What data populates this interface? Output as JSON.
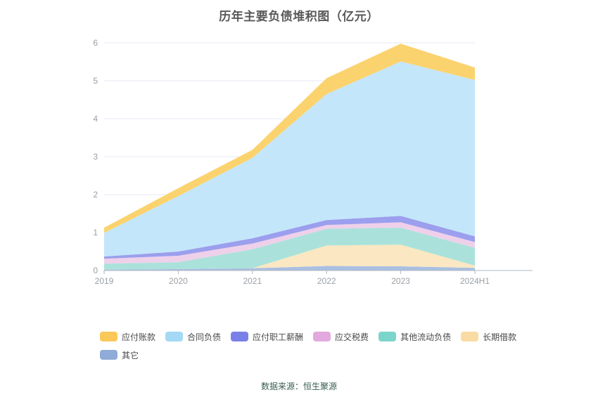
{
  "title": "历年主要负债堆积图（亿元）",
  "footer": {
    "text": "数据来源：恒生聚源"
  },
  "chart_data": {
    "type": "area",
    "stacked": true,
    "title": "历年主要负债堆积图（亿元）",
    "unit": "亿元",
    "categories": [
      "2019",
      "2020",
      "2021",
      "2022",
      "2023",
      "2024H1"
    ],
    "xlabel": "",
    "ylabel": "",
    "ylim": [
      0,
      6
    ],
    "y_ticks": [
      0,
      1,
      2,
      3,
      4,
      5,
      6
    ],
    "grid": true,
    "legend_position": "bottom",
    "stack_note": "series listed in legend order; stacked bottom-to-top in reverse order (其它 at bottom, 应付账款 on top)",
    "series": [
      {
        "name": "应付账款",
        "color": "#FAC858",
        "area_color": "#FBD36E",
        "values": [
          0.14,
          0.21,
          0.21,
          0.42,
          0.47,
          0.33
        ]
      },
      {
        "name": "合同负债",
        "color": "#A3D9F5",
        "area_color": "#C4E6FA",
        "values": [
          0.62,
          1.46,
          2.12,
          3.32,
          4.07,
          4.12
        ]
      },
      {
        "name": "应付职工薪酬",
        "color": "#7B80E8",
        "area_color": "#9B9FED",
        "values": [
          0.06,
          0.11,
          0.14,
          0.13,
          0.17,
          0.15
        ]
      },
      {
        "name": "应交税费",
        "color": "#E2A9DC",
        "area_color": "#EFD0EA",
        "values": [
          0.13,
          0.17,
          0.15,
          0.1,
          0.14,
          0.15
        ]
      },
      {
        "name": "其他流动负债",
        "color": "#7BD5CA",
        "area_color": "#AAE2DB",
        "values": [
          0.16,
          0.18,
          0.5,
          0.44,
          0.45,
          0.47
        ]
      },
      {
        "name": "长期借款",
        "color": "#F9DCA4",
        "area_color": "#FBE7C2",
        "values": [
          0.0,
          0.0,
          0.0,
          0.54,
          0.57,
          0.06
        ]
      },
      {
        "name": "其它",
        "color": "#8FABD8",
        "area_color": "#A9C0E2",
        "values": [
          0.02,
          0.04,
          0.06,
          0.12,
          0.11,
          0.07
        ]
      }
    ],
    "axis_style": {
      "tick_label_color": "#999fa6",
      "axis_line_color": "#b0b6c0",
      "grid_line_color": "#e7eaf4"
    }
  }
}
